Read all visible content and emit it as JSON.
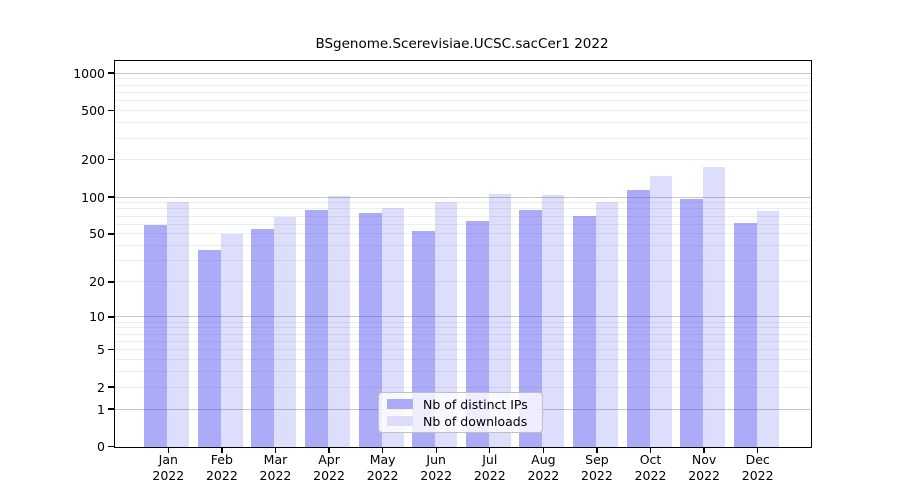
{
  "chart_data": {
    "type": "bar",
    "title": "BSgenome.Scerevisiae.UCSC.sacCer1 2022",
    "categories": [
      "Jan",
      "Feb",
      "Mar",
      "Apr",
      "May",
      "Jun",
      "Jul",
      "Aug",
      "Sep",
      "Oct",
      "Nov",
      "Dec"
    ],
    "year_label": "2022",
    "series": [
      {
        "name": "Nb of distinct IPs",
        "values": [
          59,
          37,
          55,
          78,
          74,
          53,
          64,
          79,
          70,
          114,
          97,
          62
        ],
        "color": "rgba(68,68,238,0.45)",
        "swatch": "#abaaf7"
      },
      {
        "name": "Nb of downloads",
        "values": [
          92,
          50,
          69,
          102,
          81,
          91,
          105,
          103,
          92,
          148,
          176,
          77
        ],
        "color": "rgba(68,68,238,0.18)",
        "swatch": "#dddcfb"
      }
    ],
    "y_ticks": [
      0,
      1,
      2,
      5,
      10,
      20,
      50,
      100,
      200,
      500,
      1000
    ],
    "scale": "log1p",
    "ylim": [
      0,
      1250
    ],
    "grid": "on",
    "grid_minor_color": "#ededed",
    "grid_major_color": "#c6c6c6",
    "legend_position": "bottom-center",
    "xlabel": "",
    "ylabel": ""
  }
}
